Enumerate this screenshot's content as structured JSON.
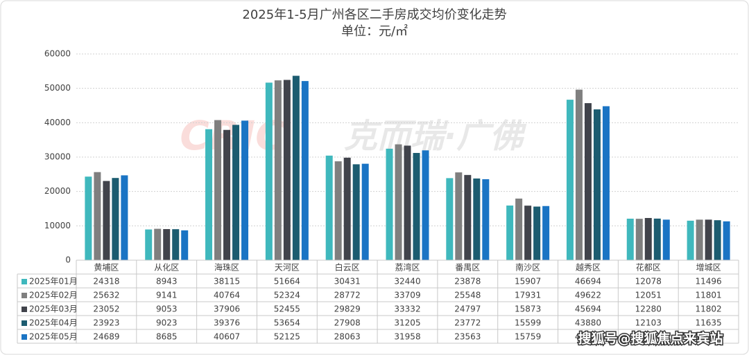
{
  "chart_data": {
    "type": "bar",
    "title": "2025年1-5月广州各区二手房成交均价变化走势",
    "subtitle": "单位：元/㎡",
    "watermark": "克而瑞·广佛",
    "logo_text": "CRIC",
    "source_watermark": "搜狐号@搜狐焦点来宾站",
    "categories": [
      "黄埔区",
      "从化区",
      "海珠区",
      "天河区",
      "白云区",
      "荔湾区",
      "番禺区",
      "南沙区",
      "越秀区",
      "花都区",
      "增城区"
    ],
    "series": [
      {
        "name": "2025年01月",
        "color": "#3fb8bd",
        "values": [
          24318,
          8943,
          38115,
          51664,
          30431,
          32440,
          23878,
          15907,
          46694,
          12078,
          11496
        ]
      },
      {
        "name": "2025年02月",
        "color": "#7f7f7f",
        "values": [
          25632,
          9141,
          40764,
          52324,
          28772,
          33709,
          25548,
          17931,
          49622,
          12051,
          11801
        ]
      },
      {
        "name": "2025年03月",
        "color": "#41434b",
        "values": [
          23052,
          9053,
          37906,
          52455,
          29829,
          33332,
          24797,
          15873,
          45694,
          12280,
          11802
        ]
      },
      {
        "name": "2025年04月",
        "color": "#1c5c70",
        "values": [
          23923,
          9023,
          39376,
          53654,
          27908,
          31205,
          23772,
          15599,
          43880,
          12103,
          11635
        ]
      },
      {
        "name": "2025年05月",
        "color": "#1a74c4",
        "values": [
          24689,
          8685,
          40607,
          52125,
          28063,
          31958,
          23563,
          15759,
          44800,
          11800,
          11300
        ]
      }
    ],
    "ylim": [
      0,
      60000
    ],
    "yticks": [
      0,
      10000,
      20000,
      30000,
      40000,
      50000,
      60000
    ],
    "grid": true
  }
}
